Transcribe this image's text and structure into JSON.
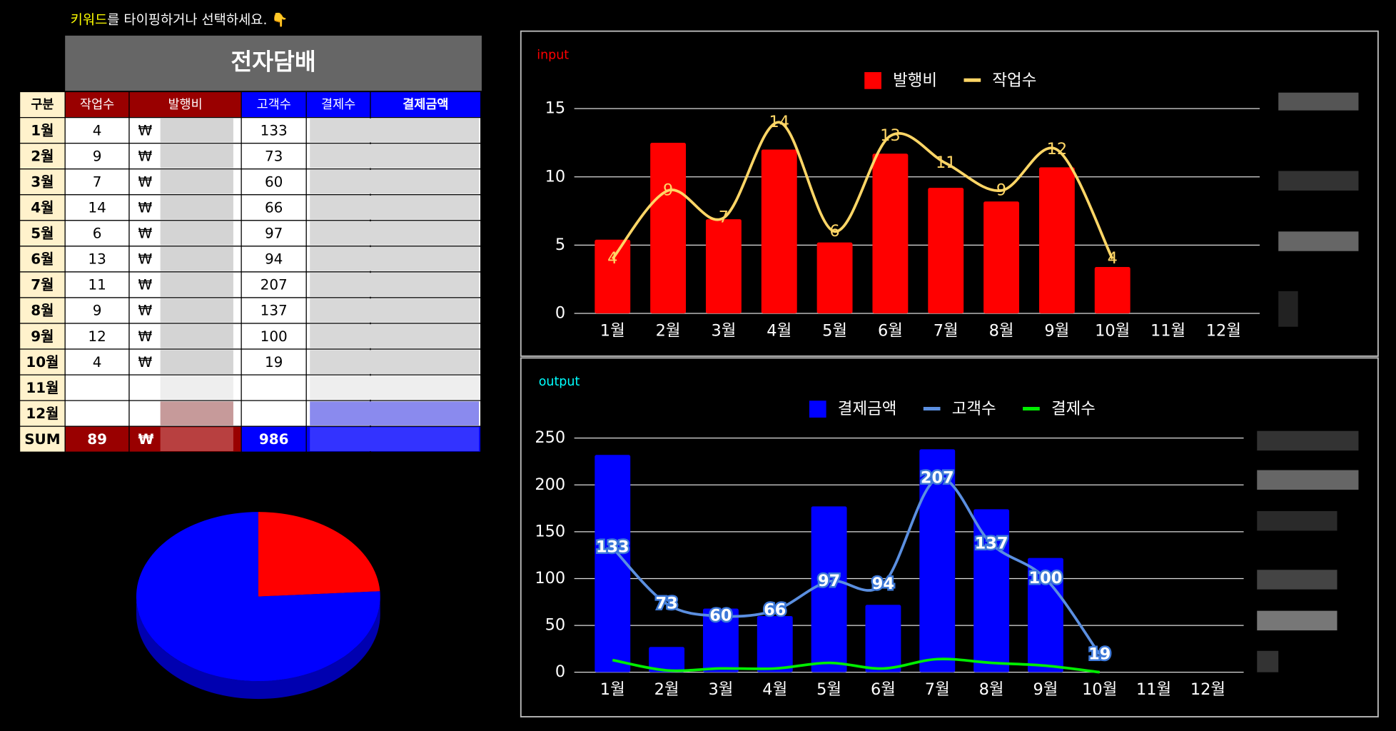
{
  "prompt": {
    "keyword": "키워드",
    "rest": "를 타이핑하거나 선택하세요. 👇"
  },
  "table": {
    "title": "전자담배",
    "columns": [
      "구분",
      "작업수",
      "발행비",
      "고객수",
      "결제수",
      "결제금액"
    ],
    "rows": [
      {
        "month": "1월",
        "jobs": 4,
        "fee": "₩",
        "customers": 133
      },
      {
        "month": "2월",
        "jobs": 9,
        "fee": "₩",
        "customers": 73
      },
      {
        "month": "3월",
        "jobs": 7,
        "fee": "₩",
        "customers": 60
      },
      {
        "month": "4월",
        "jobs": 14,
        "fee": "₩",
        "customers": 66
      },
      {
        "month": "5월",
        "jobs": 6,
        "fee": "₩",
        "customers": 97
      },
      {
        "month": "6월",
        "jobs": 13,
        "fee": "₩",
        "customers": 94
      },
      {
        "month": "7월",
        "jobs": 11,
        "fee": "₩",
        "customers": 207
      },
      {
        "month": "8월",
        "jobs": 9,
        "fee": "₩",
        "customers": 137
      },
      {
        "month": "9월",
        "jobs": 12,
        "fee": "₩",
        "customers": 100
      },
      {
        "month": "10월",
        "jobs": 4,
        "fee": "₩",
        "customers": 19
      },
      {
        "month": "11월"
      },
      {
        "month": "12월"
      },
      {
        "month": "SUM",
        "jobs": 89,
        "fee": "₩",
        "customers": 986
      }
    ]
  },
  "chart_data": [
    {
      "type": "pie",
      "values": [
        24,
        76
      ],
      "colors": [
        "#ff0000",
        "#0000ff"
      ]
    },
    {
      "type": "combo",
      "title": "input",
      "title_color": "#ff0000",
      "legend": "top",
      "grid": true,
      "categories": [
        "1월",
        "2월",
        "3월",
        "4월",
        "5월",
        "6월",
        "7월",
        "8월",
        "9월",
        "10월",
        "11월",
        "12월"
      ],
      "ylim": [
        0,
        15
      ],
      "yticks": [
        0,
        5,
        10,
        15
      ],
      "series": [
        {
          "name": "발행비",
          "type": "bar",
          "color": "#ff0000",
          "values": [
            5.4,
            12.5,
            6.9,
            12,
            5.2,
            11.7,
            9.2,
            8.2,
            10.7,
            3.4,
            null,
            null
          ]
        },
        {
          "name": "작업수",
          "type": "line",
          "color": "#ffd666",
          "smooth": true,
          "data_labels": true,
          "values": [
            4,
            9,
            7,
            14,
            6,
            13,
            11,
            9,
            12,
            4,
            null,
            null
          ]
        }
      ]
    },
    {
      "type": "combo",
      "title": "output",
      "title_color": "#00ffff",
      "legend": "top",
      "grid": true,
      "categories": [
        "1월",
        "2월",
        "3월",
        "4월",
        "5월",
        "6월",
        "7월",
        "8월",
        "9월",
        "10월",
        "11월",
        "12월"
      ],
      "ylim": [
        0,
        250
      ],
      "yticks": [
        0,
        50,
        100,
        150,
        200,
        250
      ],
      "series": [
        {
          "name": "결제금액",
          "type": "bar",
          "color": "#0000ff",
          "values": [
            232,
            27,
            68,
            60,
            177,
            72,
            238,
            174,
            122,
            null,
            null,
            null
          ]
        },
        {
          "name": "고객수",
          "type": "line",
          "color": "#5b8fe0",
          "smooth": true,
          "data_labels": true,
          "values": [
            133,
            73,
            60,
            66,
            97,
            94,
            207,
            137,
            100,
            19,
            null,
            null
          ]
        },
        {
          "name": "결제수",
          "type": "line",
          "color": "#00ee00",
          "smooth": true,
          "data_labels": false,
          "values": [
            13,
            2,
            4,
            4,
            10,
            4,
            14,
            10,
            7,
            0,
            null,
            null
          ]
        }
      ]
    }
  ]
}
